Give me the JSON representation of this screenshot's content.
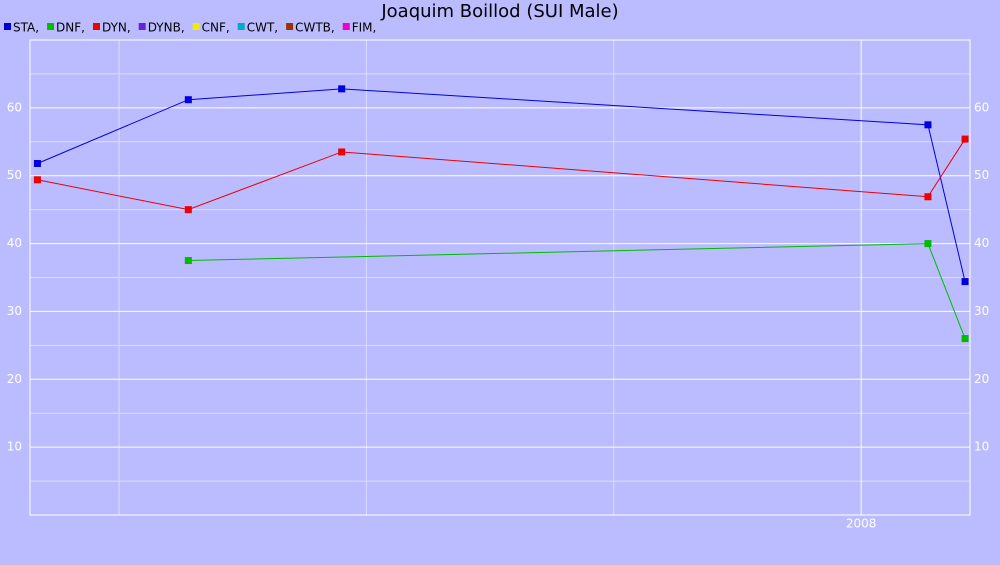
{
  "chart_data": {
    "type": "line",
    "title": "Joaquim Boillod (SUI Male)",
    "series": [
      {
        "name": "STA,",
        "color": "#0000dd",
        "x": [
          2004.67,
          2005.28,
          2005.9,
          2008.27,
          2008.42
        ],
        "values": [
          51.8,
          61.2,
          62.8,
          57.5,
          34.4
        ]
      },
      {
        "name": "DNF,",
        "color": "#00bb00",
        "x": [
          2005.28,
          2008.27,
          2008.42
        ],
        "values": [
          37.5,
          40.0,
          26.0
        ]
      },
      {
        "name": "DYN,",
        "color": "#ee0000",
        "x": [
          2004.67,
          2005.28,
          2005.9,
          2008.27,
          2008.42
        ],
        "values": [
          49.4,
          45.0,
          53.5,
          46.9,
          55.4
        ]
      },
      {
        "name": "DYNB,",
        "color": "#6622dd",
        "x": [],
        "values": []
      },
      {
        "name": "CNF,",
        "color": "#eeee00",
        "x": [],
        "values": []
      },
      {
        "name": "CWT,",
        "color": "#00aacc",
        "x": [],
        "values": []
      },
      {
        "name": "CWTB,",
        "color": "#993300",
        "x": [],
        "values": []
      },
      {
        "name": "FIM,",
        "color": "#ee00cc",
        "x": [],
        "values": []
      }
    ],
    "xlim": [
      2004.64,
      2008.44
    ],
    "xticks": [
      2008
    ],
    "xminorticks": [
      2005,
      2006,
      2007
    ],
    "ylim": [
      0,
      70
    ],
    "yticks": [
      10,
      20,
      30,
      40,
      50,
      60
    ],
    "yminorticks": [
      5,
      15,
      25,
      35,
      45,
      55,
      65
    ],
    "grid": true
  }
}
